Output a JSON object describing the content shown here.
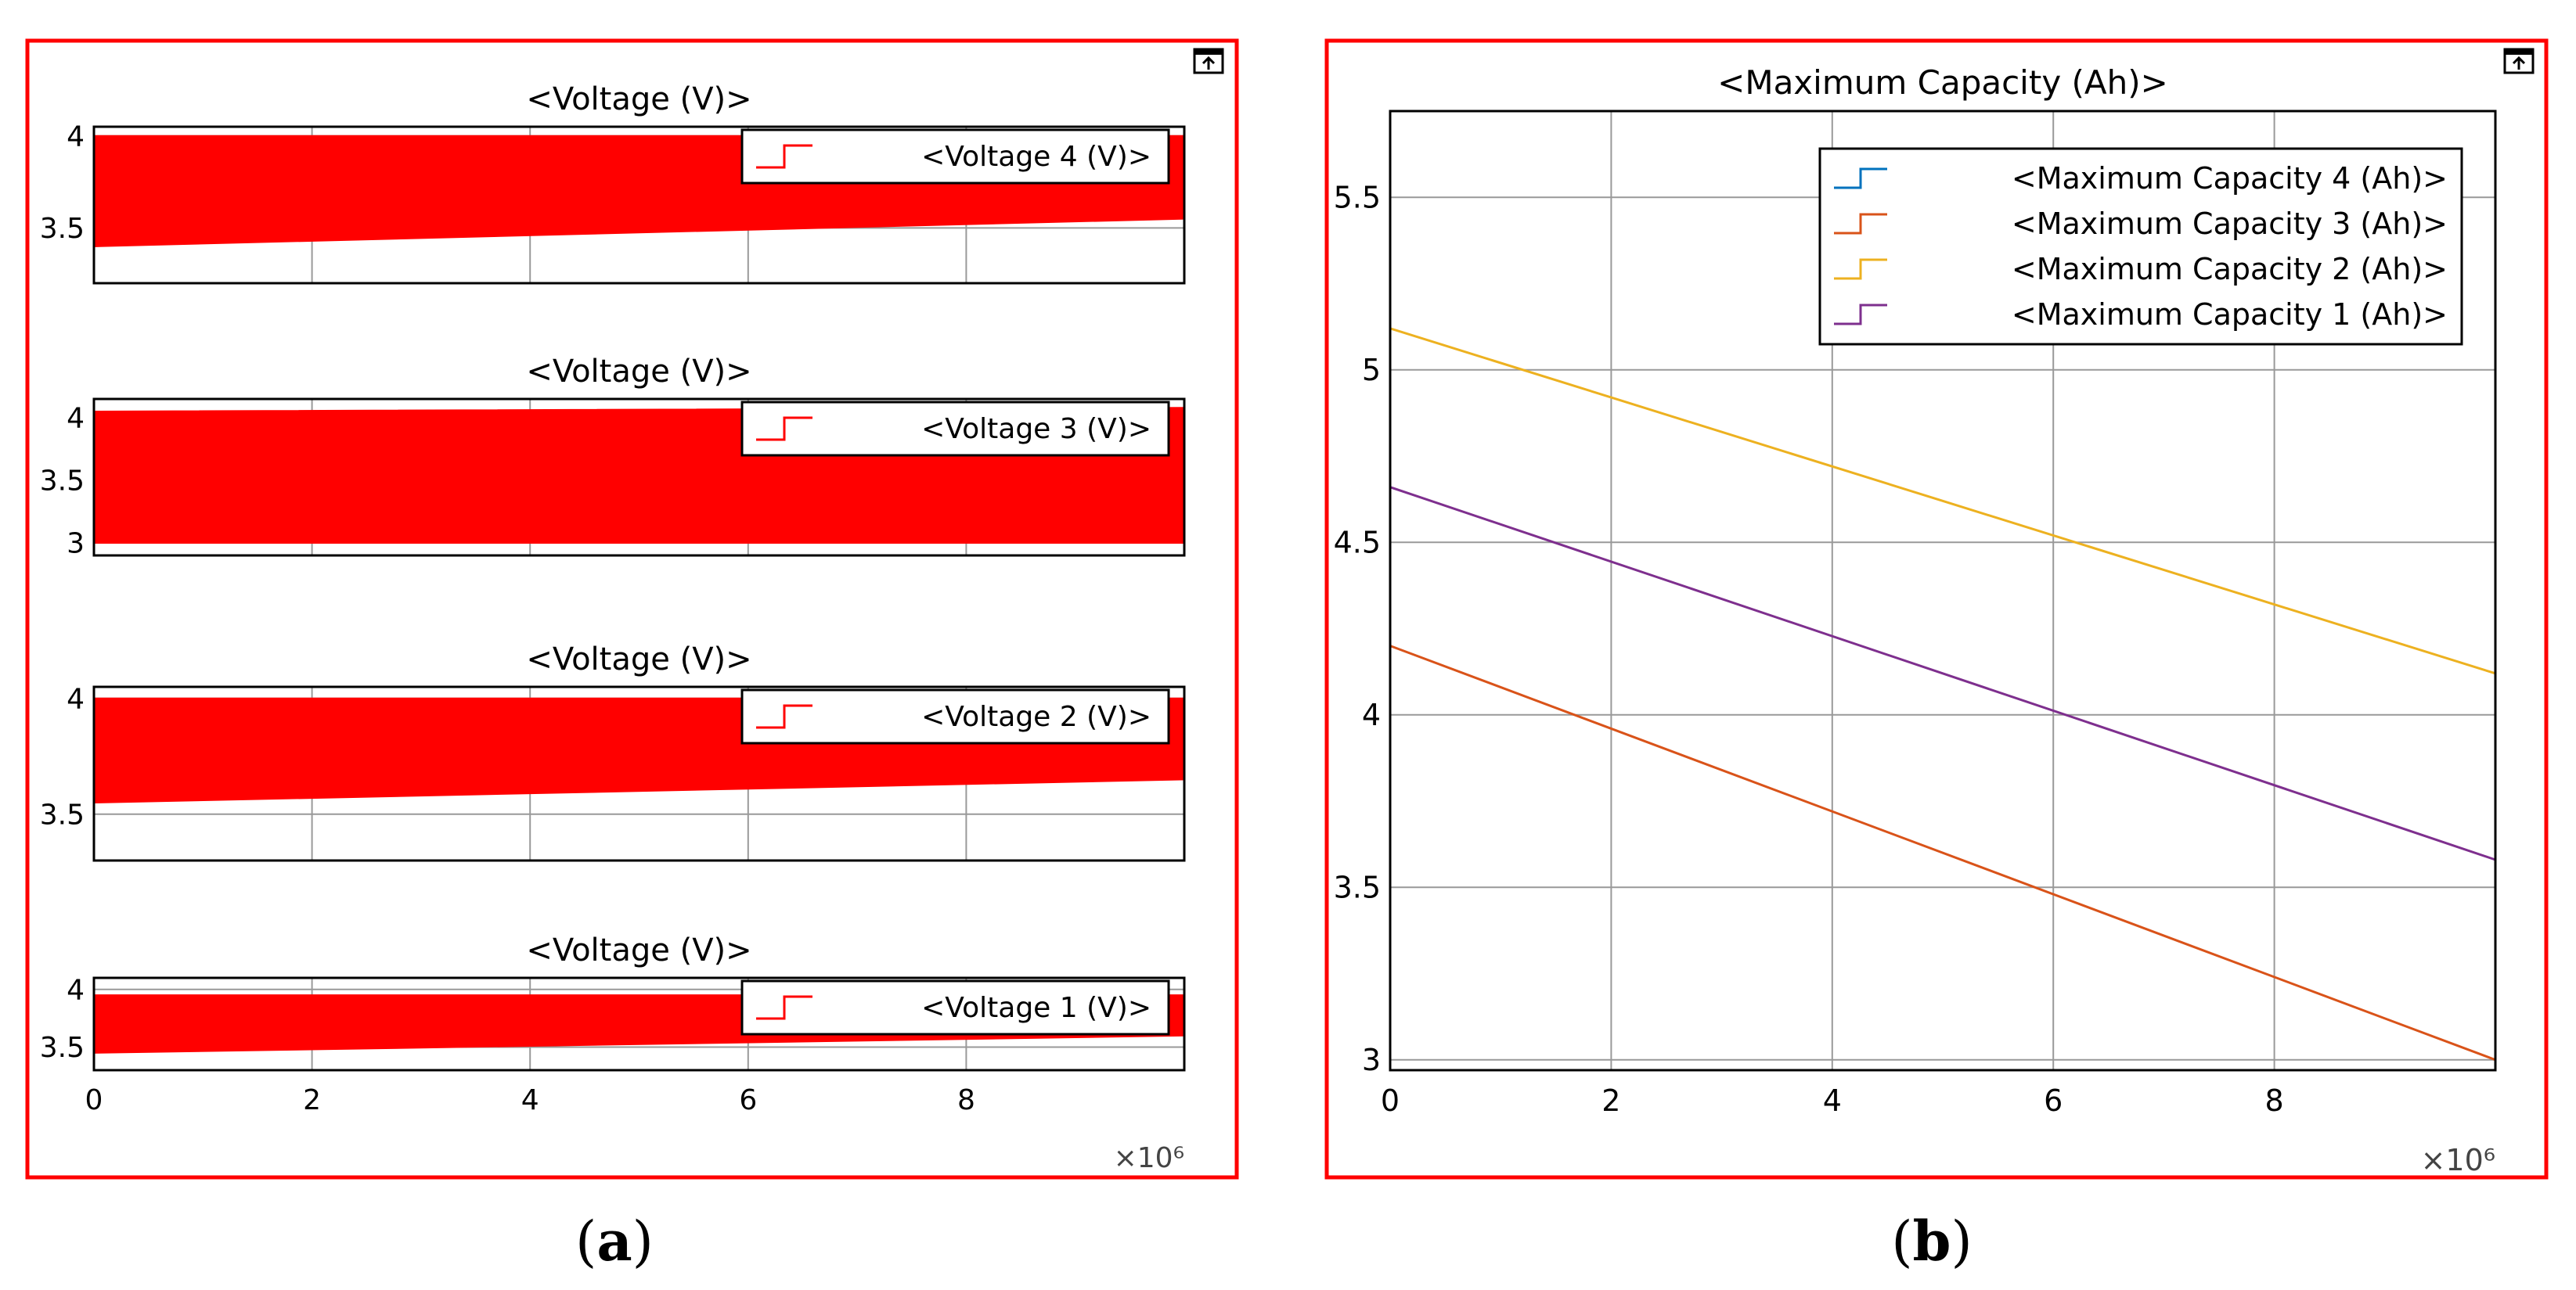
{
  "captions": {
    "left": "a",
    "right": "b"
  },
  "colors": {
    "frame": "#ff0000",
    "voltage_fill": "#ff0000",
    "grid": "#999999",
    "axis": "#000000"
  },
  "icons": {
    "expand": "expand-icon"
  },
  "chart_data": [
    {
      "type": "area",
      "panel": "a",
      "title": "<Voltage (V)>",
      "legend": [
        "<Voltage 4 (V)>"
      ],
      "legend_position": "top-right",
      "x_range": [
        0,
        10000000
      ],
      "xticks": [
        0,
        2000000,
        4000000,
        6000000,
        8000000
      ],
      "xtick_labels": [
        "0",
        "2",
        "4",
        "6",
        "8"
      ],
      "ylim": [
        3.2,
        4.05
      ],
      "yticks": [
        3.5,
        4
      ],
      "ytick_labels": [
        "3.5",
        "4"
      ],
      "series": [
        {
          "name": "<Voltage 4 (V)>",
          "x": [
            0,
            10000000
          ],
          "upper": [
            4.0,
            4.0
          ],
          "lower": [
            3.4,
            3.55
          ]
        }
      ]
    },
    {
      "type": "area",
      "panel": "a",
      "title": "<Voltage (V)>",
      "legend": [
        "<Voltage 3 (V)>"
      ],
      "legend_position": "top-right",
      "x_range": [
        0,
        10000000
      ],
      "xticks": [
        0,
        2000000,
        4000000,
        6000000,
        8000000
      ],
      "xtick_labels": [
        "0",
        "2",
        "4",
        "6",
        "8"
      ],
      "ylim": [
        2.9,
        4.15
      ],
      "yticks": [
        3,
        3.5,
        4
      ],
      "ytick_labels": [
        "3",
        "3.5",
        "4"
      ],
      "series": [
        {
          "name": "<Voltage 3 (V)>",
          "x": [
            0,
            10000000
          ],
          "upper": [
            4.05,
            4.08
          ],
          "lower": [
            3.0,
            3.0
          ]
        }
      ]
    },
    {
      "type": "area",
      "panel": "a",
      "title": "<Voltage (V)>",
      "legend": [
        "<Voltage 2 (V)>"
      ],
      "legend_position": "top-right",
      "x_range": [
        0,
        10000000
      ],
      "xticks": [
        0,
        2000000,
        4000000,
        6000000,
        8000000
      ],
      "xtick_labels": [
        "0",
        "2",
        "4",
        "6",
        "8"
      ],
      "ylim": [
        3.3,
        4.05
      ],
      "yticks": [
        3.5,
        4
      ],
      "ytick_labels": [
        "3.5",
        "4"
      ],
      "series": [
        {
          "name": "<Voltage 2 (V)>",
          "x": [
            0,
            10000000
          ],
          "upper": [
            4.0,
            4.0
          ],
          "lower": [
            3.55,
            3.65
          ]
        }
      ]
    },
    {
      "type": "area",
      "panel": "a",
      "title": "<Voltage (V)>",
      "legend": [
        "<Voltage 1 (V)>"
      ],
      "legend_position": "top-right",
      "x_range": [
        0,
        10000000
      ],
      "xticks": [
        0,
        2000000,
        4000000,
        6000000,
        8000000
      ],
      "xtick_labels": [
        "0",
        "2",
        "4",
        "6",
        "8"
      ],
      "xlabel": "×10⁶",
      "ylim": [
        3.3,
        4.1
      ],
      "yticks": [
        3.5,
        4
      ],
      "ytick_labels": [
        "3.5",
        "4"
      ],
      "series": [
        {
          "name": "<Voltage 1 (V)>",
          "x": [
            0,
            10000000
          ],
          "upper": [
            3.95,
            3.95
          ],
          "lower": [
            3.45,
            3.6
          ]
        }
      ]
    },
    {
      "type": "line",
      "panel": "b",
      "title": "<Maximum Capacity (Ah)>",
      "legend_position": "top-right",
      "x_range": [
        0,
        10000000
      ],
      "xticks": [
        0,
        2000000,
        4000000,
        6000000,
        8000000
      ],
      "xtick_labels": [
        "0",
        "2",
        "4",
        "6",
        "8"
      ],
      "xlabel": "×10⁶",
      "ylim": [
        2.97,
        5.75
      ],
      "yticks": [
        3,
        3.5,
        4,
        4.5,
        5,
        5.5
      ],
      "ytick_labels": [
        "3",
        "3.5",
        "4",
        "4.5",
        "5",
        "5.5"
      ],
      "series": [
        {
          "name": "<Maximum Capacity 4 (Ah)>",
          "color": "#0072bd",
          "x": [],
          "y": []
        },
        {
          "name": "<Maximum Capacity 3 (Ah)>",
          "color": "#d95319",
          "x": [
            0,
            10000000
          ],
          "y": [
            4.2,
            3.0
          ]
        },
        {
          "name": "<Maximum Capacity 2 (Ah)>",
          "color": "#edb120",
          "x": [
            0,
            10000000
          ],
          "y": [
            5.12,
            4.12
          ]
        },
        {
          "name": "<Maximum Capacity 1 (Ah)>",
          "color": "#7e2f8e",
          "x": [
            0,
            10000000
          ],
          "y": [
            4.66,
            3.58
          ]
        }
      ]
    }
  ]
}
